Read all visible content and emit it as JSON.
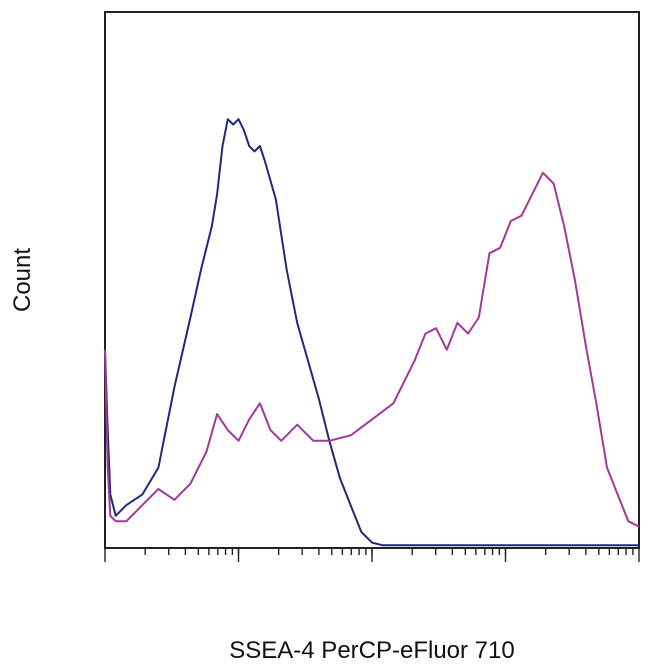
{
  "chart_data": {
    "type": "line",
    "title": "",
    "xlabel": "SSEA-4 PerCP-eFluor 710",
    "ylabel": "Count",
    "xscale": "log",
    "xlim": [
      0,
      1
    ],
    "ylim": [
      0,
      1
    ],
    "grid": false,
    "legend": "none",
    "series": [
      {
        "color": "#1f2a78",
        "x": [
          0.0,
          0.005,
          0.01,
          0.02,
          0.04,
          0.07,
          0.1,
          0.13,
          0.16,
          0.18,
          0.2,
          0.21,
          0.22,
          0.23,
          0.24,
          0.25,
          0.26,
          0.27,
          0.28,
          0.29,
          0.3,
          0.32,
          0.34,
          0.36,
          0.38,
          0.4,
          0.42,
          0.44,
          0.46,
          0.48,
          0.5,
          0.52,
          0.6,
          0.8,
          1.0
        ],
        "y": [
          0.37,
          0.22,
          0.1,
          0.06,
          0.08,
          0.1,
          0.15,
          0.3,
          0.43,
          0.52,
          0.6,
          0.66,
          0.75,
          0.8,
          0.79,
          0.8,
          0.78,
          0.75,
          0.74,
          0.75,
          0.72,
          0.65,
          0.52,
          0.42,
          0.35,
          0.28,
          0.2,
          0.13,
          0.08,
          0.03,
          0.01,
          0.005,
          0.005,
          0.005,
          0.005
        ]
      },
      {
        "color": "#a0399a",
        "x": [
          0.0,
          0.005,
          0.01,
          0.02,
          0.04,
          0.07,
          0.1,
          0.13,
          0.16,
          0.19,
          0.21,
          0.23,
          0.25,
          0.27,
          0.29,
          0.31,
          0.33,
          0.36,
          0.39,
          0.42,
          0.46,
          0.5,
          0.54,
          0.58,
          0.6,
          0.62,
          0.64,
          0.66,
          0.68,
          0.7,
          0.72,
          0.74,
          0.76,
          0.78,
          0.8,
          0.82,
          0.84,
          0.86,
          0.88,
          0.9,
          0.92,
          0.94,
          0.96,
          0.98,
          1.0
        ],
        "y": [
          0.37,
          0.15,
          0.06,
          0.05,
          0.05,
          0.08,
          0.11,
          0.09,
          0.12,
          0.18,
          0.25,
          0.22,
          0.2,
          0.24,
          0.27,
          0.22,
          0.2,
          0.23,
          0.2,
          0.2,
          0.21,
          0.24,
          0.27,
          0.35,
          0.4,
          0.41,
          0.37,
          0.42,
          0.4,
          0.43,
          0.55,
          0.56,
          0.61,
          0.62,
          0.66,
          0.7,
          0.68,
          0.6,
          0.5,
          0.38,
          0.27,
          0.15,
          0.1,
          0.05,
          0.04
        ]
      }
    ]
  }
}
